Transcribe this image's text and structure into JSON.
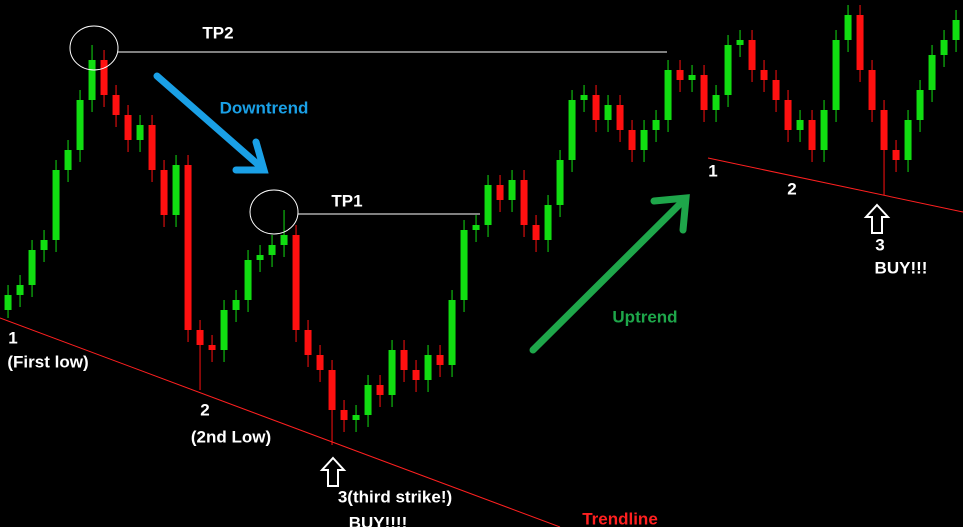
{
  "chart_data": {
    "type": "candlestick",
    "x": [
      1,
      2,
      3,
      4,
      5,
      6,
      7,
      8,
      9,
      10,
      11,
      12,
      13,
      14,
      15,
      16,
      17,
      18,
      19,
      20,
      21,
      22,
      23,
      24,
      25,
      26,
      27,
      28,
      29,
      30,
      31,
      32,
      33,
      34,
      35,
      36,
      37,
      38,
      39,
      40,
      41,
      42,
      43,
      44,
      45,
      46,
      47,
      48,
      49,
      50,
      51,
      52,
      53,
      54,
      55,
      56,
      57,
      58,
      59,
      60,
      61,
      62,
      63,
      64,
      65,
      66,
      67,
      68,
      69,
      70,
      71,
      72,
      73,
      74,
      75,
      76,
      77,
      78,
      79,
      80
    ],
    "open": [
      217,
      232,
      242,
      277,
      287,
      357,
      377,
      427,
      467,
      432,
      412,
      387,
      402,
      357,
      312,
      362,
      197,
      182,
      177,
      217,
      227,
      267,
      272,
      282,
      292,
      197,
      172,
      157,
      117,
      107,
      112,
      142,
      132,
      177,
      157,
      147,
      172,
      162,
      227,
      297,
      302,
      342,
      327,
      347,
      302,
      287,
      322,
      367,
      427,
      432,
      407,
      422,
      397,
      377,
      397,
      407,
      457,
      447,
      452,
      417,
      432,
      482,
      487,
      457,
      447,
      427,
      397,
      407,
      377,
      417,
      487,
      512,
      457,
      417,
      377,
      367,
      407,
      437,
      472,
      487
    ],
    "high": [
      242,
      252,
      287,
      297,
      367,
      387,
      437,
      482,
      477,
      442,
      422,
      412,
      412,
      367,
      372,
      372,
      207,
      192,
      227,
      237,
      277,
      282,
      292,
      317,
      302,
      207,
      182,
      167,
      127,
      122,
      152,
      152,
      187,
      187,
      167,
      182,
      182,
      237,
      307,
      312,
      352,
      352,
      357,
      357,
      312,
      332,
      377,
      437,
      442,
      442,
      432,
      432,
      407,
      407,
      417,
      467,
      467,
      462,
      462,
      442,
      492,
      497,
      497,
      467,
      457,
      437,
      417,
      417,
      427,
      497,
      522,
      522,
      467,
      427,
      387,
      417,
      447,
      482,
      497,
      517
    ],
    "low": [
      209,
      220,
      230,
      265,
      275,
      345,
      365,
      415,
      420,
      400,
      375,
      375,
      345,
      300,
      300,
      185,
      137,
      165,
      165,
      205,
      215,
      255,
      260,
      270,
      185,
      160,
      145,
      82,
      95,
      95,
      100,
      120,
      120,
      145,
      135,
      135,
      150,
      150,
      215,
      285,
      290,
      315,
      315,
      290,
      275,
      275,
      310,
      355,
      415,
      395,
      395,
      385,
      365,
      365,
      385,
      395,
      435,
      435,
      405,
      405,
      420,
      470,
      445,
      435,
      415,
      385,
      385,
      365,
      365,
      405,
      475,
      445,
      405,
      332,
      355,
      355,
      395,
      425,
      460,
      475
    ],
    "close": [
      232,
      242,
      277,
      287,
      357,
      377,
      427,
      467,
      432,
      412,
      387,
      402,
      357,
      312,
      362,
      197,
      182,
      177,
      217,
      227,
      267,
      272,
      282,
      292,
      197,
      172,
      157,
      117,
      107,
      112,
      142,
      132,
      177,
      157,
      147,
      172,
      162,
      227,
      297,
      302,
      342,
      327,
      347,
      302,
      287,
      322,
      367,
      427,
      432,
      407,
      422,
      397,
      377,
      397,
      407,
      457,
      447,
      452,
      417,
      432,
      482,
      487,
      457,
      447,
      427,
      397,
      407,
      377,
      417,
      487,
      512,
      457,
      417,
      377,
      367,
      407,
      437,
      472,
      487,
      507
    ],
    "up_color": "#11dd11",
    "down_color": "#ff1010",
    "xlim": [
      0.33,
      80.58
    ],
    "ylim": [
      0,
      527
    ],
    "annotations": [
      "TP2",
      "Downtrend",
      "TP1",
      "Uptrend",
      "Trendline",
      "1",
      "(First low)",
      "2",
      "(2nd Low)",
      "3(third strike!)",
      "BUY!!!!",
      "1",
      "2",
      "3",
      "BUY!!!"
    ]
  }
}
